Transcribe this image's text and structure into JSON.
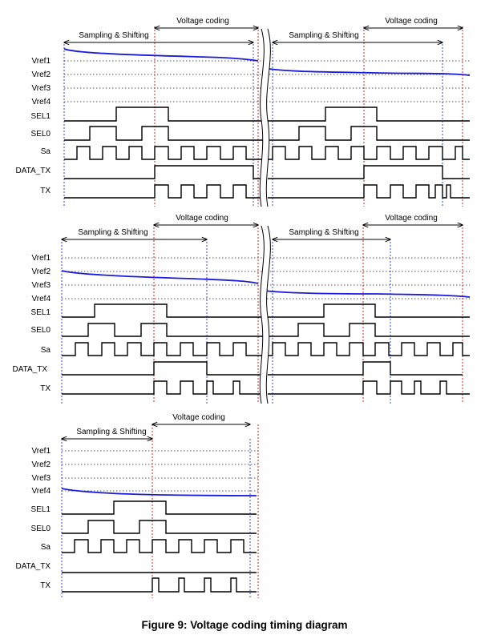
{
  "figure": {
    "caption": "Figure 9: Voltage coding timing diagram"
  },
  "annotations": {
    "sampling": "Sampling & Shifting",
    "coding": "Voltage coding"
  },
  "signals": {
    "vref1": "Vref1",
    "vref2": "Vref2",
    "vref3": "Vref3",
    "vref4": "Vref4",
    "sel1": "SEL1",
    "sel0": "SEL0",
    "sa": "Sa",
    "data_tx": "DATA_TX",
    "tx": "TX"
  },
  "panels": [
    {
      "name": "panel-1",
      "segments": 2,
      "start_level": "Vref1",
      "end_level": "Vref2"
    },
    {
      "name": "panel-2",
      "segments": 2,
      "start_level": "Vref2",
      "end_level": "Vref4"
    },
    {
      "name": "panel-3",
      "segments": 1,
      "start_level": "Vref4",
      "end_level": "Vref4"
    }
  ],
  "colors": {
    "curve": "#1a1adc",
    "sample_marker": "#3344dd",
    "coding_marker": "#dd2222"
  }
}
